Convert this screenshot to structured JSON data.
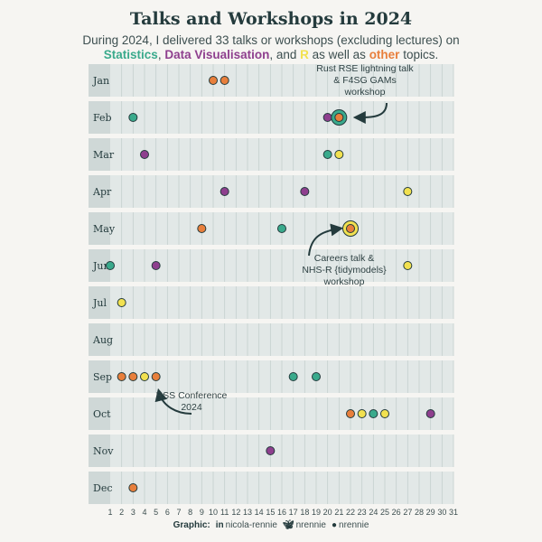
{
  "title": "Talks and Workshops in 2024",
  "subtitle": {
    "line1": "During 2024, I delivered 33 talks or workshops (excluding lectures) on",
    "statistics": "Statistics",
    "sep1": ", ",
    "dataviz": "Data Visualisation",
    "sep2": ", and ",
    "r": "R",
    "mid": " as well as ",
    "other": "other",
    "end": " topics."
  },
  "colors": {
    "Statistics": "#3aaa8c",
    "Data Visualisation": "#8e3f8e",
    "R": "#f2e150",
    "other": "#e87f3c",
    "panel_bg": "#e2e8e7",
    "month_strip": "#cfd8d7",
    "arrow": "#243b3d"
  },
  "chart_data": {
    "type": "scatter",
    "x_label_values": [
      1,
      2,
      3,
      4,
      5,
      6,
      7,
      8,
      9,
      10,
      11,
      12,
      13,
      14,
      15,
      16,
      17,
      18,
      19,
      20,
      21,
      22,
      23,
      24,
      25,
      26,
      27,
      28,
      29,
      30,
      31
    ],
    "xlim": [
      1,
      31
    ],
    "months": [
      "Jan",
      "Feb",
      "Mar",
      "Apr",
      "May",
      "Jun",
      "Jul",
      "Aug",
      "Sep",
      "Oct",
      "Nov",
      "Dec"
    ],
    "points": [
      {
        "month": "Jan",
        "day": 10,
        "topic": "other"
      },
      {
        "month": "Jan",
        "day": 11,
        "topic": "other"
      },
      {
        "month": "Feb",
        "day": 3,
        "topic": "Statistics"
      },
      {
        "month": "Feb",
        "day": 20,
        "topic": "Data Visualisation"
      },
      {
        "month": "Feb",
        "day": 21,
        "topic": "Statistics",
        "ring": true
      },
      {
        "month": "Feb",
        "day": 21,
        "topic": "other"
      },
      {
        "month": "Mar",
        "day": 4,
        "topic": "Data Visualisation"
      },
      {
        "month": "Mar",
        "day": 20,
        "topic": "Statistics"
      },
      {
        "month": "Mar",
        "day": 21,
        "topic": "R"
      },
      {
        "month": "Apr",
        "day": 11,
        "topic": "Data Visualisation"
      },
      {
        "month": "Apr",
        "day": 18,
        "topic": "Data Visualisation"
      },
      {
        "month": "Apr",
        "day": 27,
        "topic": "R"
      },
      {
        "month": "May",
        "day": 9,
        "topic": "other"
      },
      {
        "month": "May",
        "day": 16,
        "topic": "Statistics"
      },
      {
        "month": "May",
        "day": 22,
        "topic": "R",
        "ring": true
      },
      {
        "month": "May",
        "day": 22,
        "topic": "other"
      },
      {
        "month": "Jun",
        "day": 1,
        "topic": "Statistics"
      },
      {
        "month": "Jun",
        "day": 5,
        "topic": "Data Visualisation"
      },
      {
        "month": "Jun",
        "day": 27,
        "topic": "R"
      },
      {
        "month": "Jul",
        "day": 2,
        "topic": "R"
      },
      {
        "month": "Sep",
        "day": 2,
        "topic": "other"
      },
      {
        "month": "Sep",
        "day": 3,
        "topic": "other"
      },
      {
        "month": "Sep",
        "day": 4,
        "topic": "R"
      },
      {
        "month": "Sep",
        "day": 5,
        "topic": "other"
      },
      {
        "month": "Sep",
        "day": 17,
        "topic": "Statistics"
      },
      {
        "month": "Sep",
        "day": 19,
        "topic": "Statistics"
      },
      {
        "month": "Oct",
        "day": 22,
        "topic": "other"
      },
      {
        "month": "Oct",
        "day": 23,
        "topic": "R"
      },
      {
        "month": "Oct",
        "day": 24,
        "topic": "Statistics"
      },
      {
        "month": "Oct",
        "day": 25,
        "topic": "R"
      },
      {
        "month": "Oct",
        "day": 29,
        "topic": "Data Visualisation"
      },
      {
        "month": "Nov",
        "day": 15,
        "topic": "Data Visualisation"
      },
      {
        "month": "Dec",
        "day": 3,
        "topic": "other"
      }
    ],
    "annotations": [
      {
        "month": "Feb",
        "day": 21,
        "lines": [
          "Rust RSE lightning talk",
          "& F4SG GAMs",
          "workshop"
        ]
      },
      {
        "month": "May",
        "day": 22,
        "lines": [
          "Careers talk &",
          "NHS-R {tidymodels}",
          "workshop"
        ]
      },
      {
        "month": "Sep",
        "day": 5,
        "lines": [
          "RSS Conference",
          "2024"
        ]
      }
    ]
  },
  "caption": {
    "label": "Graphic:",
    "linkedin_icon": "linkedin-icon",
    "linkedin": "nicola-rennie",
    "bluesky_icon": "butterfly-icon",
    "bluesky": "nrennie",
    "github_icon": "github-icon",
    "github": "nrennie"
  }
}
